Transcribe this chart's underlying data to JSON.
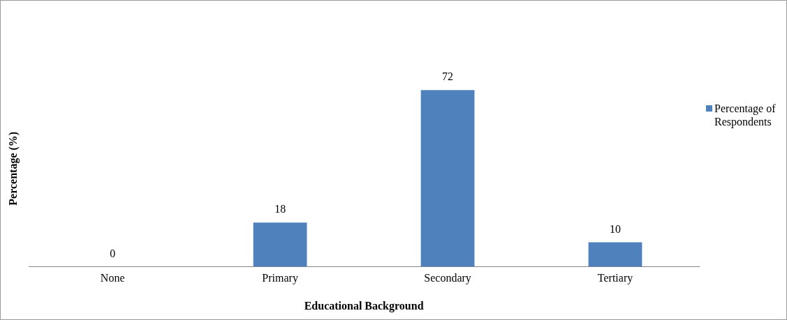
{
  "chart_data": {
    "type": "bar",
    "xlabel": "Educational Background",
    "ylabel": "Percentage (%)",
    "categories": [
      "None",
      "Primary",
      "Secondary",
      "Tertiary"
    ],
    "series": [
      {
        "name": "Percentage of Respondents",
        "color": "#4f81bd",
        "values": [
          0,
          18,
          72,
          10
        ]
      }
    ],
    "data_labels": true,
    "legend": "right",
    "grid": false
  }
}
